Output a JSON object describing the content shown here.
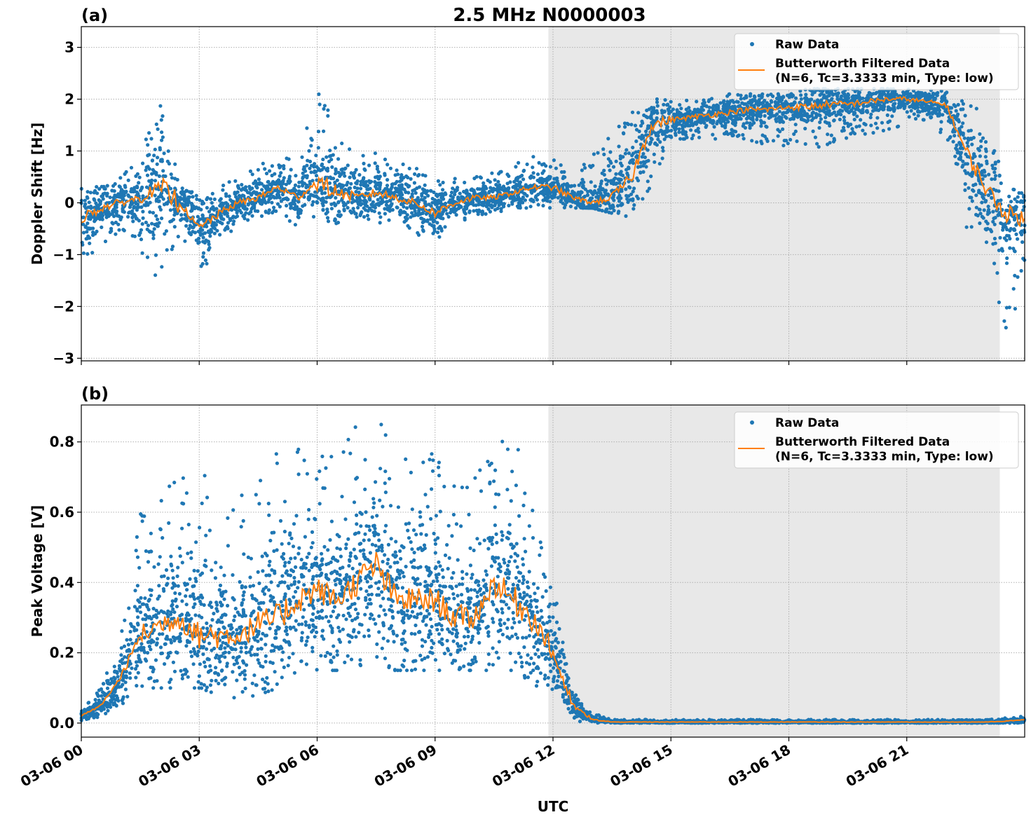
{
  "title": "2.5 MHz N0000003",
  "colors": {
    "raw": "#1f77b4",
    "filtered": "#ff7f0e",
    "shade": "#e8e8e8",
    "grid": "#b0b0b0"
  },
  "legend": {
    "raw": "Raw Data",
    "filtered_line1": "Butterworth Filtered Data",
    "filtered_line2": "(N=6, Tc=3.3333 min, Type: low)",
    "placement": "top-right"
  },
  "xlabel": "UTC",
  "x_ticks": [
    "03-06 00",
    "03-06 03",
    "03-06 06",
    "03-06 09",
    "03-06 12",
    "03-06 15",
    "03-06 18",
    "03-06 21"
  ],
  "chart_data": [
    {
      "type": "scatter",
      "panel_label": "(a)",
      "ylabel": "Doppler Shift [Hz]",
      "xlim": [
        "03-06 00:00",
        "03-07 00:00"
      ],
      "ylim": [
        -3.05,
        3.4
      ],
      "y_ticks": [
        "3",
        "2",
        "1",
        "0",
        "−1",
        "−2",
        "−3"
      ],
      "y_tick_values": [
        3,
        2,
        1,
        0,
        -1,
        -2,
        -3
      ],
      "grid": true,
      "shaded_span": [
        "03-06 11:53",
        "03-06 23:22"
      ],
      "time_hours": [
        0,
        0.5,
        1,
        1.5,
        2,
        2.5,
        3,
        3.5,
        4,
        4.5,
        5,
        5.5,
        6,
        6.5,
        7,
        7.5,
        8,
        8.5,
        9,
        9.5,
        10,
        10.5,
        11,
        11.5,
        12,
        12.5,
        13,
        13.5,
        14,
        14.5,
        15,
        15.5,
        16,
        16.5,
        17,
        17.5,
        18,
        18.5,
        19,
        19.5,
        20,
        20.5,
        21,
        21.5,
        22,
        22.5,
        23,
        23.5,
        24
      ],
      "filtered": [
        -0.3,
        -0.1,
        0.0,
        0.1,
        0.3,
        0.0,
        -0.5,
        -0.2,
        0.0,
        0.1,
        0.3,
        0.1,
        0.4,
        0.2,
        0.1,
        0.2,
        0.1,
        0.0,
        -0.2,
        0.0,
        0.1,
        0.1,
        0.2,
        0.3,
        0.3,
        0.1,
        0.0,
        0.1,
        0.5,
        1.5,
        1.6,
        1.65,
        1.7,
        1.75,
        1.8,
        1.8,
        1.85,
        1.85,
        1.9,
        1.9,
        1.95,
        2.0,
        2.0,
        1.95,
        1.9,
        1.0,
        0.3,
        -0.2,
        -0.3
      ],
      "raw_min": [
        -1.2,
        -1.0,
        -0.5,
        -0.9,
        -1.6,
        -0.6,
        -1.6,
        -0.7,
        -0.5,
        -0.3,
        -0.2,
        -0.5,
        -0.3,
        -0.4,
        -0.3,
        -0.4,
        -0.4,
        -0.6,
        -0.8,
        -0.4,
        -0.3,
        -0.2,
        -0.1,
        -0.1,
        -0.1,
        -0.1,
        -0.1,
        -0.2,
        -0.3,
        0.3,
        1.2,
        1.2,
        1.2,
        1.2,
        1.2,
        1.1,
        1.0,
        1.0,
        1.1,
        1.2,
        1.3,
        1.4,
        1.5,
        1.5,
        1.2,
        -0.5,
        -0.8,
        -2.5,
        -1.8
      ],
      "raw_max": [
        0.5,
        0.3,
        0.6,
        1.0,
        2.0,
        0.4,
        0.2,
        0.3,
        0.5,
        0.7,
        1.0,
        0.8,
        2.5,
        1.3,
        1.0,
        1.0,
        0.8,
        0.7,
        0.5,
        0.6,
        0.5,
        0.6,
        0.8,
        0.9,
        0.9,
        0.6,
        0.9,
        1.5,
        1.9,
        2.0,
        2.0,
        2.0,
        2.1,
        2.1,
        2.1,
        2.1,
        2.1,
        2.2,
        2.2,
        2.2,
        2.2,
        2.2,
        2.2,
        2.2,
        2.2,
        2.0,
        1.8,
        0.3,
        0.2
      ]
    },
    {
      "type": "scatter",
      "panel_label": "(b)",
      "ylabel": "Peak Voltage [V]",
      "xlim": [
        "03-06 00:00",
        "03-07 00:00"
      ],
      "ylim": [
        -0.04,
        0.905
      ],
      "y_ticks": [
        "0.8",
        "0.6",
        "0.4",
        "0.2",
        "0.0"
      ],
      "y_tick_values": [
        0.8,
        0.6,
        0.4,
        0.2,
        0.0
      ],
      "grid": true,
      "shaded_span": [
        "03-06 11:53",
        "03-06 23:22"
      ],
      "time_hours": [
        0,
        0.5,
        1,
        1.5,
        2,
        2.5,
        3,
        3.5,
        4,
        4.5,
        5,
        5.5,
        6,
        6.5,
        7,
        7.5,
        8,
        8.5,
        9,
        9.5,
        10,
        10.5,
        11,
        11.5,
        12,
        12.5,
        13,
        13.5,
        14,
        14.5,
        15,
        15.5,
        16,
        16.5,
        17,
        17.5,
        18,
        18.5,
        19,
        19.5,
        20,
        20.5,
        21,
        21.5,
        22,
        22.5,
        23,
        23.5,
        24
      ],
      "filtered": [
        0.02,
        0.05,
        0.13,
        0.25,
        0.28,
        0.3,
        0.25,
        0.25,
        0.25,
        0.28,
        0.3,
        0.35,
        0.38,
        0.35,
        0.4,
        0.45,
        0.35,
        0.35,
        0.35,
        0.3,
        0.3,
        0.4,
        0.35,
        0.3,
        0.2,
        0.05,
        0.01,
        0.003,
        0.003,
        0.003,
        0.003,
        0.003,
        0.003,
        0.003,
        0.003,
        0.003,
        0.003,
        0.003,
        0.003,
        0.003,
        0.003,
        0.003,
        0.003,
        0.003,
        0.003,
        0.003,
        0.003,
        0.005,
        0.01
      ],
      "raw_min": [
        0.0,
        0.02,
        0.05,
        0.1,
        0.1,
        0.1,
        0.1,
        0.08,
        0.07,
        0.08,
        0.1,
        0.15,
        0.15,
        0.15,
        0.15,
        0.15,
        0.15,
        0.15,
        0.15,
        0.15,
        0.15,
        0.15,
        0.15,
        0.1,
        0.08,
        0.0,
        0.0,
        0.0,
        0.0,
        0.0,
        0.0,
        0.0,
        0.0,
        0.0,
        0.0,
        0.0,
        0.0,
        0.0,
        0.0,
        0.0,
        0.0,
        0.0,
        0.0,
        0.0,
        0.0,
        0.0,
        0.0,
        0.0,
        0.0
      ],
      "raw_max": [
        0.04,
        0.1,
        0.25,
        0.6,
        0.65,
        0.7,
        0.76,
        0.6,
        0.65,
        0.75,
        0.8,
        0.78,
        0.76,
        0.78,
        0.85,
        0.86,
        0.82,
        0.75,
        0.77,
        0.75,
        0.7,
        0.8,
        0.86,
        0.6,
        0.4,
        0.1,
        0.03,
        0.01,
        0.01,
        0.01,
        0.01,
        0.01,
        0.01,
        0.01,
        0.01,
        0.01,
        0.01,
        0.01,
        0.01,
        0.01,
        0.01,
        0.01,
        0.01,
        0.01,
        0.01,
        0.01,
        0.01,
        0.015,
        0.02
      ]
    }
  ]
}
